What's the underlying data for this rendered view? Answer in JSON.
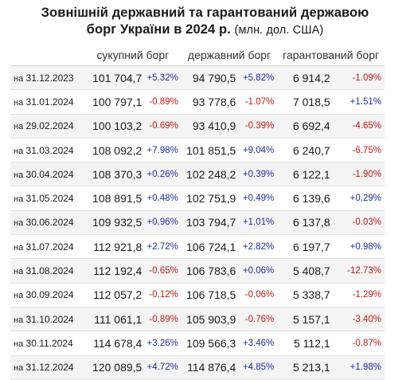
{
  "chart_data": {
    "type": "table",
    "title_line1": "Зовнішній державний та гарантований державою",
    "title_line2": "борг України в 2024 р.",
    "units": "(млн. дол. США)",
    "date_prefix": "на",
    "columns": [
      "сукупний борг",
      "державний борг",
      "гарантований борг"
    ],
    "rows": [
      {
        "date": "31.12.2023",
        "total": "101 704,7",
        "total_chg": "+5.32%",
        "state": "94 790,5",
        "state_chg": "+5.82%",
        "guar": "6 914,2",
        "guar_chg": "-1.09%"
      },
      {
        "date": "31.01.2024",
        "total": "100 797,1",
        "total_chg": "-0.89%",
        "state": "93 778,6",
        "state_chg": "-1.07%",
        "guar": "7 018,5",
        "guar_chg": "+1.51%"
      },
      {
        "date": "29.02.2024",
        "total": "100 103,2",
        "total_chg": "-0.69%",
        "state": "93 410,9",
        "state_chg": "-0.39%",
        "guar": "6 692,4",
        "guar_chg": "-4.65%"
      },
      {
        "date": "31.03.2024",
        "total": "108 092,2",
        "total_chg": "+7.98%",
        "state": "101 851,5",
        "state_chg": "+9.04%",
        "guar": "6 240,7",
        "guar_chg": "-6.75%"
      },
      {
        "date": "30.04.2024",
        "total": "108 370,3",
        "total_chg": "+0.26%",
        "state": "102 248,2",
        "state_chg": "+0.39%",
        "guar": "6 122,1",
        "guar_chg": "-1.90%"
      },
      {
        "date": "31.05.2024",
        "total": "108 891,5",
        "total_chg": "+0.48%",
        "state": "102 751,9",
        "state_chg": "+0.49%",
        "guar": "6 139,6",
        "guar_chg": "+0.29%"
      },
      {
        "date": "30.06.2024",
        "total": "109 932,5",
        "total_chg": "+0.96%",
        "state": "103 794,7",
        "state_chg": "+1.01%",
        "guar": "6 137,8",
        "guar_chg": "-0.03%"
      },
      {
        "date": "31.07.2024",
        "total": "112 921,8",
        "total_chg": "+2.72%",
        "state": "106 724,1",
        "state_chg": "+2.82%",
        "guar": "6 197,7",
        "guar_chg": "+0.98%"
      },
      {
        "date": "31.08.2024",
        "total": "112 192,4",
        "total_chg": "-0.65%",
        "state": "106 783,6",
        "state_chg": "+0.06%",
        "guar": "5 408,7",
        "guar_chg": "-12.73%"
      },
      {
        "date": "30.09.2024",
        "total": "112 057,2",
        "total_chg": "-0.12%",
        "state": "106 718,5",
        "state_chg": "-0.06%",
        "guar": "5 338,7",
        "guar_chg": "-1.29%"
      },
      {
        "date": "31.10.2024",
        "total": "111 061,1",
        "total_chg": "-0.89%",
        "state": "105 903,9",
        "state_chg": "-0.76%",
        "guar": "5 157,1",
        "guar_chg": "-3.40%"
      },
      {
        "date": "30.11.2024",
        "total": "114 678,4",
        "total_chg": "+3.26%",
        "state": "109 566,3",
        "state_chg": "+3.46%",
        "guar": "5 112,1",
        "guar_chg": "-0.87%"
      },
      {
        "date": "31.12.2024",
        "total": "120 089,5",
        "total_chg": "+4.72%",
        "state": "114 876,4",
        "state_chg": "+4.85%",
        "guar": "5 213,1",
        "guar_chg": "+1.98%"
      }
    ],
    "colors": {
      "positive": "#1f2f9e",
      "negative": "#c41a1a",
      "stripe": "#f4f4f4"
    }
  }
}
